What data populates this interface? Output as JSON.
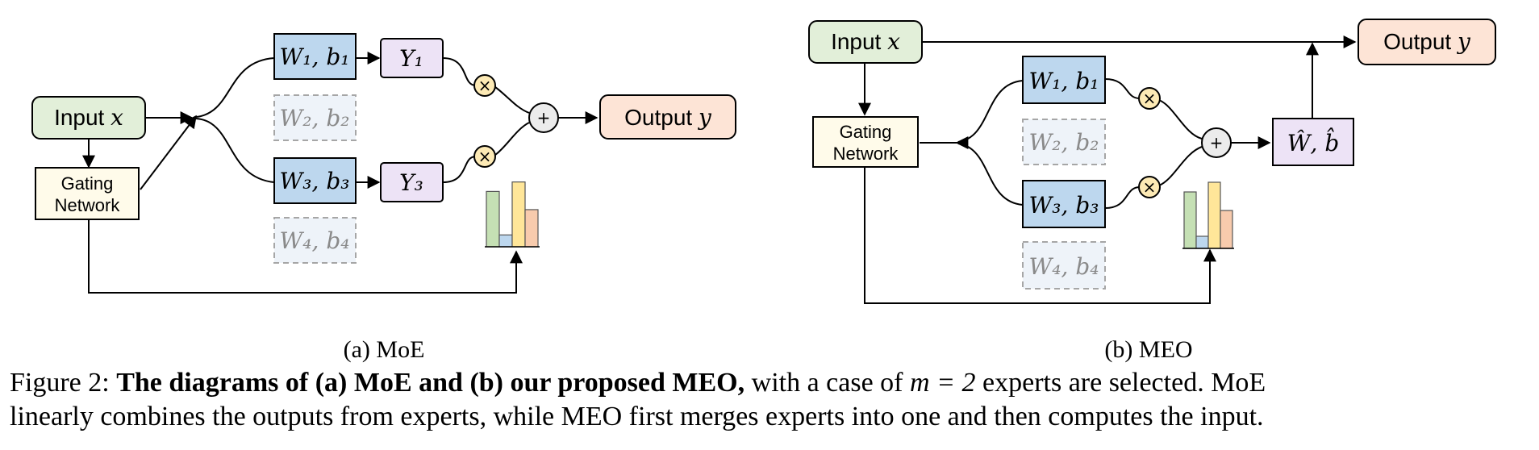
{
  "moe": {
    "input": "Input ",
    "input_var": "x",
    "gating_line1": "Gating",
    "gating_line2": "Network",
    "expert1": "W₁, b₁",
    "expert2": "W₂, b₂",
    "expert3": "W₃, b₃",
    "expert4": "W₄, b₄",
    "y1": "Y₁",
    "y3": "Y₃",
    "mul": "×",
    "plus": "+",
    "output": "Output ",
    "output_var": "y",
    "subcaption": "(a) MoE"
  },
  "meo": {
    "input": "Input ",
    "input_var": "x",
    "gating_line1": "Gating",
    "gating_line2": "Network",
    "expert1": "W₁, b₁",
    "expert2": "W₂, b₂",
    "expert3": "W₃, b₃",
    "expert4": "W₄, b₄",
    "mul": "×",
    "plus": "+",
    "merged": "Ŵ, b̂",
    "output": "Output ",
    "output_var": "y",
    "subcaption": "(b) MEO"
  },
  "caption": {
    "label": "Figure 2: ",
    "bold": "The diagrams of (a) MoE and (b) our proposed MEO,",
    "text1": " with a case of ",
    "math": "m = 2",
    "text2": " experts are selected. MoE",
    "line2": "linearly combines the outputs from experts, while MEO first merges experts into one and then computes the input."
  },
  "colors": {
    "input_fill": "#e2efd9",
    "gating_fill": "#fffbea",
    "expert_fill": "#bdd7ee",
    "expert_inactive_fill": "#eef3f9",
    "y_fill": "#ede3f6",
    "op_fill": "#fdeab5",
    "plus_fill": "#ececec",
    "output_fill": "#fde4d6",
    "bar_green": "#c5e0b4",
    "bar_blue": "#bdd7ee",
    "bar_yellow": "#ffe699",
    "bar_orange": "#f8cbad"
  },
  "gate_weights": [
    0.7,
    0.15,
    0.82,
    0.47
  ]
}
